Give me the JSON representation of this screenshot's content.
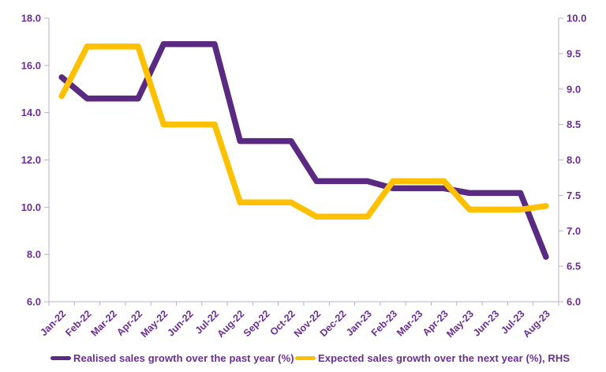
{
  "chart_data": {
    "type": "line",
    "title": "",
    "categories": [
      "Jan-22",
      "Feb-22",
      "Mar-22",
      "Apr-22",
      "May-22",
      "Jun-22",
      "Jul-22",
      "Aug-22",
      "Sep-22",
      "Oct-22",
      "Nov-22",
      "Dec-22",
      "Jan-23",
      "Feb-23",
      "Mar-23",
      "Apr-23",
      "May-23",
      "Jun-23",
      "Jul-23",
      "Aug-23"
    ],
    "series": [
      {
        "name": "Realised sales growth over the past year (%)",
        "axis": "left",
        "color": "#5a2a83",
        "values": [
          15.5,
          14.6,
          14.6,
          14.6,
          16.9,
          16.9,
          16.9,
          12.8,
          12.8,
          12.8,
          11.1,
          11.1,
          11.1,
          10.8,
          10.8,
          10.8,
          10.6,
          10.6,
          10.6,
          7.9
        ]
      },
      {
        "name": "Expected sales growth over the next year (%), RHS",
        "axis": "right",
        "color": "#ffc000",
        "values": [
          8.9,
          9.6,
          9.6,
          9.6,
          8.5,
          8.5,
          8.5,
          7.4,
          7.4,
          7.4,
          7.2,
          7.2,
          7.2,
          7.7,
          7.7,
          7.7,
          7.3,
          7.3,
          7.3,
          7.35
        ]
      }
    ],
    "axes": {
      "left": {
        "min": 6,
        "max": 18,
        "tick_labels": [
          "18.0",
          "16.0",
          "14.0",
          "12.0",
          "10.0",
          "8.0",
          "6.0"
        ]
      },
      "right": {
        "min": 6,
        "max": 10,
        "tick_labels": [
          "10.0",
          "9.5",
          "9.0",
          "8.5",
          "8.0",
          "7.5",
          "7.0",
          "6.5",
          "6.0"
        ]
      }
    },
    "legend_position": "bottom",
    "grid": false,
    "colors": {
      "axis_line": "#beb0c9",
      "tick_text": "#6a2e91"
    }
  }
}
